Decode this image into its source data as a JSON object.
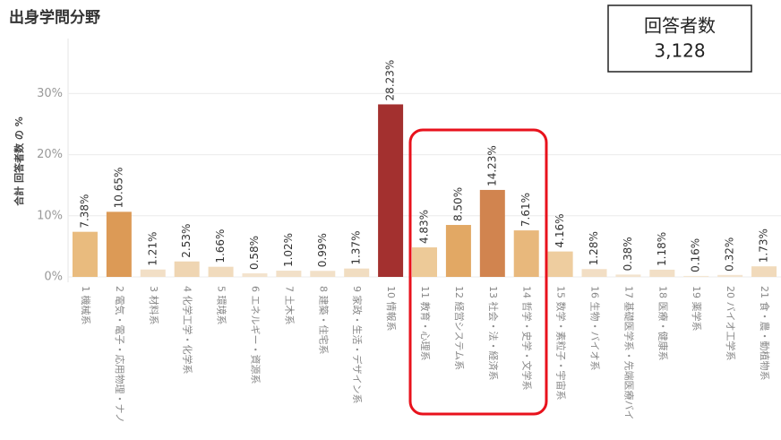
{
  "chart_data": {
    "type": "bar",
    "title": "出身学問分野",
    "ylabel": "合計 回答者数 の %",
    "summary": {
      "label": "回答者数",
      "value": {
        "value": 3128,
        "label": "3,128"
      }
    },
    "categories": [
      "1 機械系",
      "2 電気・電子・応用物理・ナノ",
      "3 材料系",
      "4 化学工学・化学系",
      "5 環境系",
      "6 エネルギー・資源系",
      "7 土木系",
      "8 建築・住宅系",
      "9 家政・生活・デザイン系",
      "10 情報系",
      "11 教育・心理系",
      "12 経営システム系",
      "13 社会・法・経済系",
      "14 哲学・史学・文学系",
      "15 数学・素粒子・宇宙系",
      "16 生物・バイオ系",
      "17 基礎医学系・先端医療バイ",
      "18 医療・健康系",
      "19 薬学系",
      "20 バイオ工学系",
      "21 食・農・動植物系"
    ],
    "values": [
      7.38,
      10.65,
      1.21,
      2.53,
      1.66,
      0.58,
      1.02,
      0.99,
      1.37,
      28.23,
      4.83,
      8.5,
      14.23,
      7.61,
      4.16,
      1.28,
      0.38,
      1.18,
      0.16,
      0.32,
      1.73
    ],
    "value_labels": [
      "7.38%",
      "10.65%",
      "1.21%",
      "2.53%",
      "1.66%",
      "0.58%",
      "1.02%",
      "0.99%",
      "1.37%",
      "28.23%",
      "4.83%",
      "8.50%",
      "14.23%",
      "7.61%",
      "4.16%",
      "1.28%",
      "0.38%",
      "1.18%",
      "0.16%",
      "0.32%",
      "1.73%"
    ],
    "colors": [
      "#e9bb7e",
      "#dc9a56",
      "#f2dfc6",
      "#efd5b2",
      "#f1dbbd",
      "#f3e3cd",
      "#f2e0c8",
      "#f2e0c8",
      "#f1ddc1",
      "#a3302f",
      "#edca98",
      "#e2a864",
      "#d1844f",
      "#e8b87c",
      "#eecd9f",
      "#f2dec4",
      "#f3e4cf",
      "#f2dfc6",
      "#f4e6d2",
      "#f3e4d0",
      "#f1dabb"
    ],
    "ylim": [
      0,
      39
    ],
    "yticks": [
      {
        "value": 0,
        "label": "0%"
      },
      {
        "value": 10,
        "label": "10%"
      },
      {
        "value": 20,
        "label": "20%"
      },
      {
        "value": 30,
        "label": "30%"
      }
    ],
    "grid": true
  }
}
